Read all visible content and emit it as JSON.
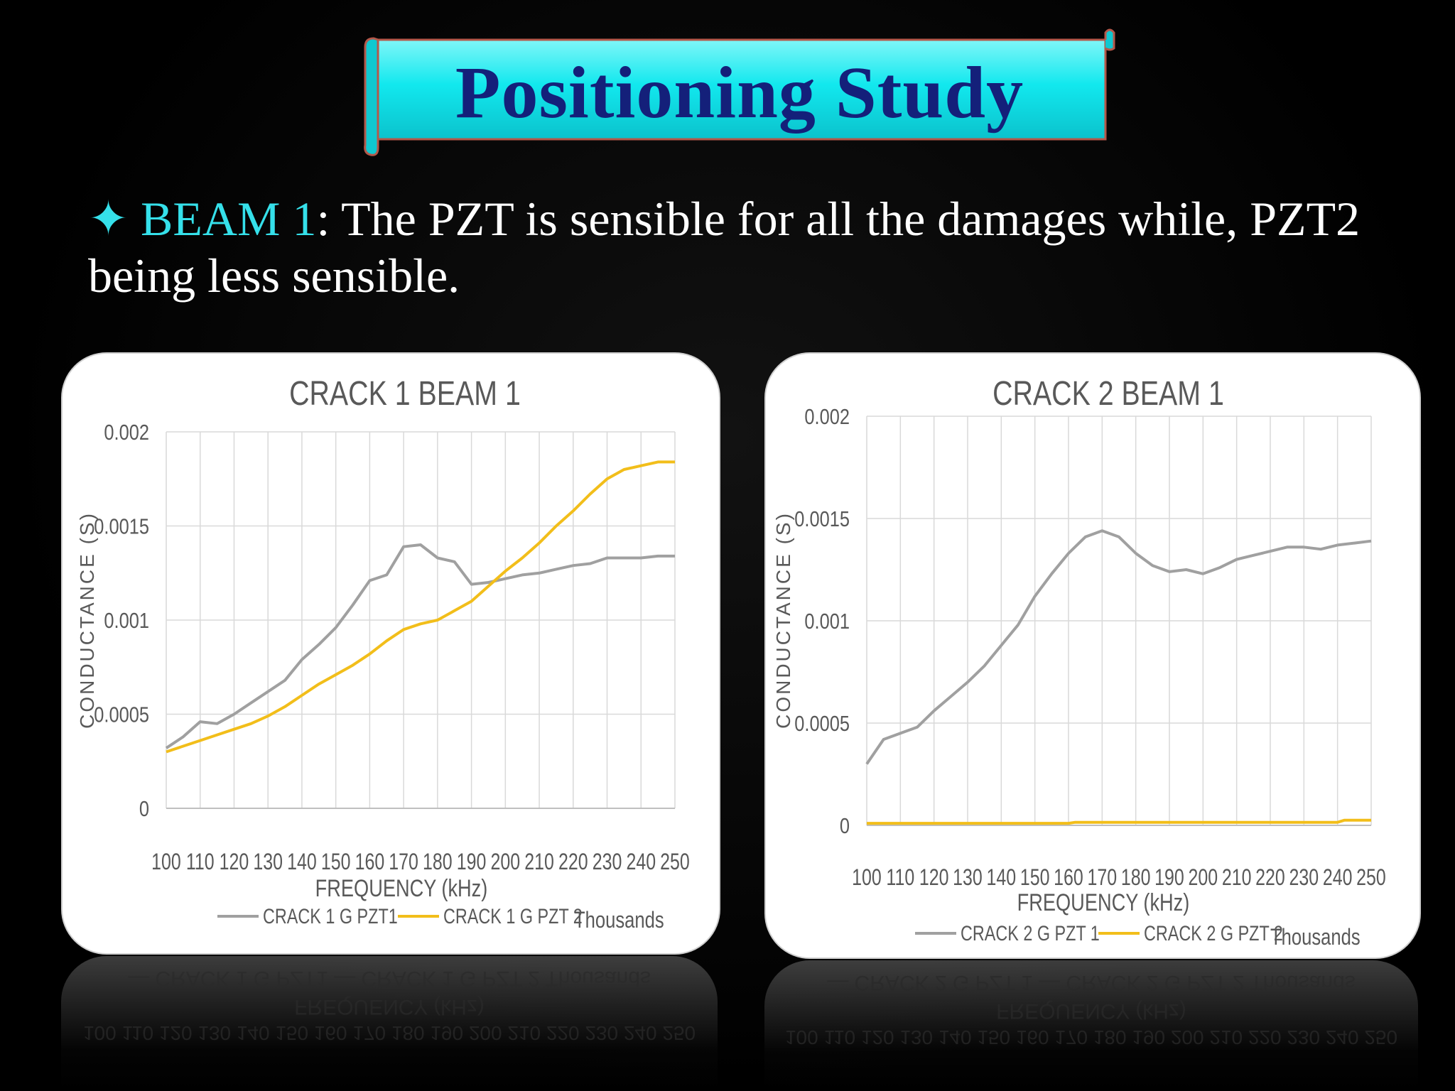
{
  "slide": {
    "title": "Positioning Study",
    "bullet": {
      "symbol": "✦",
      "highlight": "BEAM 1",
      "text": ": The PZT is sensible for all the damages while, PZT2 being less sensible."
    }
  },
  "colors": {
    "banner_fill": "#12e8ee",
    "banner_border": "#b4584a",
    "title_text": "#14207a",
    "highlight_text": "#35e0ea",
    "series_gray": "#a0a0a0",
    "series_yellow": "#f2be1a"
  },
  "chart_data": [
    {
      "type": "line",
      "title": "CRACK 1 BEAM 1",
      "xlabel": "FREQUENCY (kHz)",
      "ylabel": "CONDUCTANCE (S)",
      "x_unit_label": "Thousands",
      "xlim": [
        100,
        250
      ],
      "ylim": [
        0,
        0.002
      ],
      "x_ticks": [
        "100",
        "110",
        "120",
        "130",
        "140",
        "150",
        "160",
        "170",
        "180",
        "190",
        "200",
        "210",
        "220",
        "230",
        "240",
        "250"
      ],
      "y_ticks": [
        "0",
        "0.0005",
        "0.001",
        "0.0015",
        "0.002"
      ],
      "grid": true,
      "legend": "bottom",
      "series": [
        {
          "name": "CRACK 1 G PZT1",
          "color": "#a0a0a0",
          "x": [
            100,
            105,
            110,
            115,
            120,
            125,
            130,
            135,
            140,
            145,
            150,
            155,
            160,
            165,
            170,
            175,
            180,
            185,
            190,
            195,
            200,
            205,
            210,
            215,
            220,
            225,
            230,
            235,
            240,
            245,
            250
          ],
          "y": [
            0.00032,
            0.00038,
            0.00046,
            0.00045,
            0.0005,
            0.00056,
            0.00062,
            0.00068,
            0.00079,
            0.00087,
            0.00096,
            0.00108,
            0.00121,
            0.00124,
            0.00139,
            0.0014,
            0.00133,
            0.00131,
            0.00119,
            0.0012,
            0.00122,
            0.00124,
            0.00125,
            0.00127,
            0.00129,
            0.0013,
            0.00133,
            0.00133,
            0.00133,
            0.00134,
            0.00134
          ]
        },
        {
          "name": "CRACK 1 G PZT 2",
          "color": "#f2be1a",
          "x": [
            100,
            105,
            110,
            115,
            120,
            125,
            130,
            135,
            140,
            145,
            150,
            155,
            160,
            165,
            170,
            175,
            180,
            185,
            190,
            195,
            200,
            205,
            210,
            215,
            220,
            225,
            230,
            235,
            240,
            245,
            250
          ],
          "y": [
            0.0003,
            0.00033,
            0.00036,
            0.00039,
            0.00042,
            0.00045,
            0.00049,
            0.00054,
            0.0006,
            0.00066,
            0.00071,
            0.00076,
            0.00082,
            0.00089,
            0.00095,
            0.00098,
            0.001,
            0.00105,
            0.0011,
            0.00118,
            0.00126,
            0.00133,
            0.00141,
            0.0015,
            0.00158,
            0.00167,
            0.00175,
            0.0018,
            0.00182,
            0.00184,
            0.00184
          ]
        }
      ]
    },
    {
      "type": "line",
      "title": "CRACK 2 BEAM 1",
      "xlabel": "FREQUENCY (kHz)",
      "ylabel": "CONDUCTANCE (S)",
      "x_unit_label": "Thousands",
      "xlim": [
        100,
        250
      ],
      "ylim": [
        0,
        0.002
      ],
      "x_ticks": [
        "100",
        "110",
        "120",
        "130",
        "140",
        "150",
        "160",
        "170",
        "180",
        "190",
        "200",
        "210",
        "220",
        "230",
        "240",
        "250"
      ],
      "y_ticks": [
        "0",
        "0.0005",
        "0.001",
        "0.0015",
        "0.002"
      ],
      "grid": true,
      "legend": "bottom",
      "series": [
        {
          "name": "CRACK 2 G PZT 1",
          "color": "#a0a0a0",
          "x": [
            100,
            105,
            110,
            115,
            120,
            125,
            130,
            135,
            140,
            145,
            150,
            155,
            160,
            165,
            170,
            175,
            180,
            185,
            190,
            195,
            200,
            205,
            210,
            215,
            220,
            225,
            230,
            235,
            240,
            245,
            250
          ],
          "y": [
            0.0003,
            0.00042,
            0.00045,
            0.00048,
            0.00056,
            0.00063,
            0.0007,
            0.00078,
            0.00088,
            0.00098,
            0.00112,
            0.00123,
            0.00133,
            0.00141,
            0.00144,
            0.00141,
            0.00133,
            0.00127,
            0.00124,
            0.00125,
            0.00123,
            0.00126,
            0.0013,
            0.00132,
            0.00134,
            0.00136,
            0.00136,
            0.00135,
            0.00137,
            0.00138,
            0.00139
          ]
        },
        {
          "name": "CRACK 2 G PZT 2",
          "color": "#f2be1a",
          "x": [
            100,
            160,
            162,
            240,
            242,
            250
          ],
          "y": [
            1e-05,
            1e-05,
            1.5e-05,
            1.5e-05,
            2.5e-05,
            2.5e-05
          ]
        }
      ]
    }
  ]
}
